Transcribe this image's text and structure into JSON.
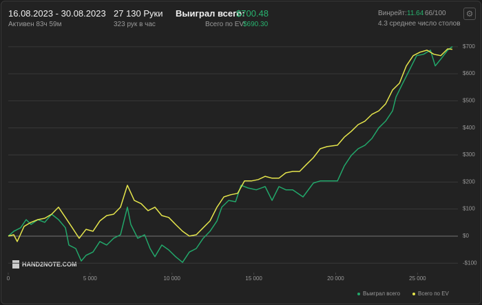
{
  "header": {
    "date_range": "16.08.2023 - 30.08.2023",
    "active": "Активен 83ч 59м",
    "hands": "27 130 Руки",
    "hands_per_hour": "323 рук в час",
    "won_label": "Выиграл всего:",
    "won_value": "$700.48",
    "ev_label": "Всего по EV:",
    "ev_value": "$690.30",
    "winrate_label": "Винрейт:",
    "winrate_value": "11.64",
    "winrate_suffix": "66/100",
    "tables": "4.3 среднее число столов",
    "logo": "HAND2NOTE.COM"
  },
  "chart_data": {
    "type": "line",
    "xlim": [
      0,
      27130
    ],
    "ylim": [
      -135,
      725
    ],
    "xticks": [
      0,
      {
        "value": 5000,
        "label": "5 000"
      },
      {
        "value": 10000,
        "label": "10 000"
      },
      {
        "value": 15000,
        "label": "15 000"
      },
      {
        "value": 20000,
        "label": "20 000"
      },
      {
        "value": 25000,
        "label": "25 000"
      }
    ],
    "yticks": [
      {
        "value": -100,
        "label": "-$100"
      },
      {
        "value": 0,
        "label": "$0"
      },
      {
        "value": 100,
        "label": "$100"
      },
      {
        "value": 200,
        "label": "$200"
      },
      {
        "value": 300,
        "label": "$300"
      },
      {
        "value": 400,
        "label": "$400"
      },
      {
        "value": 500,
        "label": "$500"
      },
      {
        "value": 600,
        "label": "$600"
      },
      {
        "value": 700,
        "label": "$700"
      }
    ],
    "grid": true,
    "legend": "bottom-right",
    "series": [
      {
        "name": "Выиграл всего",
        "color": "#22a86b",
        "x": [
          0,
          337,
          757,
          1094,
          1388,
          1809,
          2230,
          2650,
          3071,
          3492,
          3702,
          4123,
          4459,
          4754,
          5175,
          5595,
          6016,
          6437,
          6857,
          7278,
          7488,
          7909,
          8330,
          8666,
          8961,
          9381,
          9802,
          10223,
          10644,
          11064,
          11485,
          11906,
          12326,
          12747,
          13042,
          13463,
          13883,
          14220,
          14641,
          15145,
          15692,
          16113,
          16534,
          16954,
          17375,
          18006,
          18637,
          19058,
          19478,
          20109,
          20530,
          20951,
          21372,
          21792,
          22213,
          22634,
          23054,
          23475,
          23685,
          24096,
          24527,
          24948,
          25368,
          25789,
          26083,
          26420,
          26841,
          27130
        ],
        "values": [
          0,
          18,
          31,
          61,
          43,
          61,
          51,
          81,
          61,
          31,
          -33,
          -46,
          -92,
          -71,
          -59,
          -20,
          -33,
          -8,
          5,
          107,
          43,
          -8,
          5,
          -46,
          -76,
          -33,
          -51,
          -76,
          -97,
          -59,
          -46,
          -8,
          18,
          56,
          107,
          132,
          127,
          188,
          178,
          171,
          183,
          132,
          183,
          171,
          171,
          145,
          196,
          204,
          204,
          204,
          260,
          298,
          323,
          336,
          361,
          400,
          425,
          463,
          514,
          565,
          616,
          667,
          672,
          687,
          629,
          654,
          687,
          700.48
        ]
      },
      {
        "name": "Всего по EV",
        "color": "#e6e64c",
        "x": [
          0,
          337,
          547,
          968,
          1388,
          1809,
          2230,
          2650,
          3071,
          3492,
          3912,
          4333,
          4754,
          5175,
          5595,
          6016,
          6437,
          6857,
          7278,
          7699,
          8120,
          8540,
          8961,
          9381,
          9802,
          10223,
          10644,
          11064,
          11485,
          11906,
          12326,
          12747,
          13168,
          13589,
          14009,
          14430,
          14851,
          15271,
          15692,
          16113,
          16534,
          16954,
          17375,
          17796,
          18216,
          18637,
          19058,
          19478,
          20109,
          20530,
          20951,
          21372,
          21792,
          22213,
          22634,
          23054,
          23475,
          23896,
          24316,
          24737,
          25158,
          25579,
          25999,
          26420,
          26841,
          27130
        ],
        "values": [
          0,
          5,
          -20,
          36,
          51,
          61,
          66,
          81,
          107,
          69,
          31,
          -8,
          25,
          18,
          56,
          76,
          81,
          107,
          188,
          132,
          120,
          94,
          107,
          76,
          69,
          43,
          18,
          0,
          5,
          31,
          56,
          107,
          145,
          153,
          158,
          204,
          204,
          209,
          221,
          214,
          214,
          234,
          239,
          239,
          265,
          290,
          323,
          331,
          336,
          366,
          387,
          412,
          425,
          450,
          463,
          489,
          540,
          565,
          629,
          667,
          680,
          687,
          672,
          667,
          692,
          690.3
        ]
      }
    ]
  }
}
